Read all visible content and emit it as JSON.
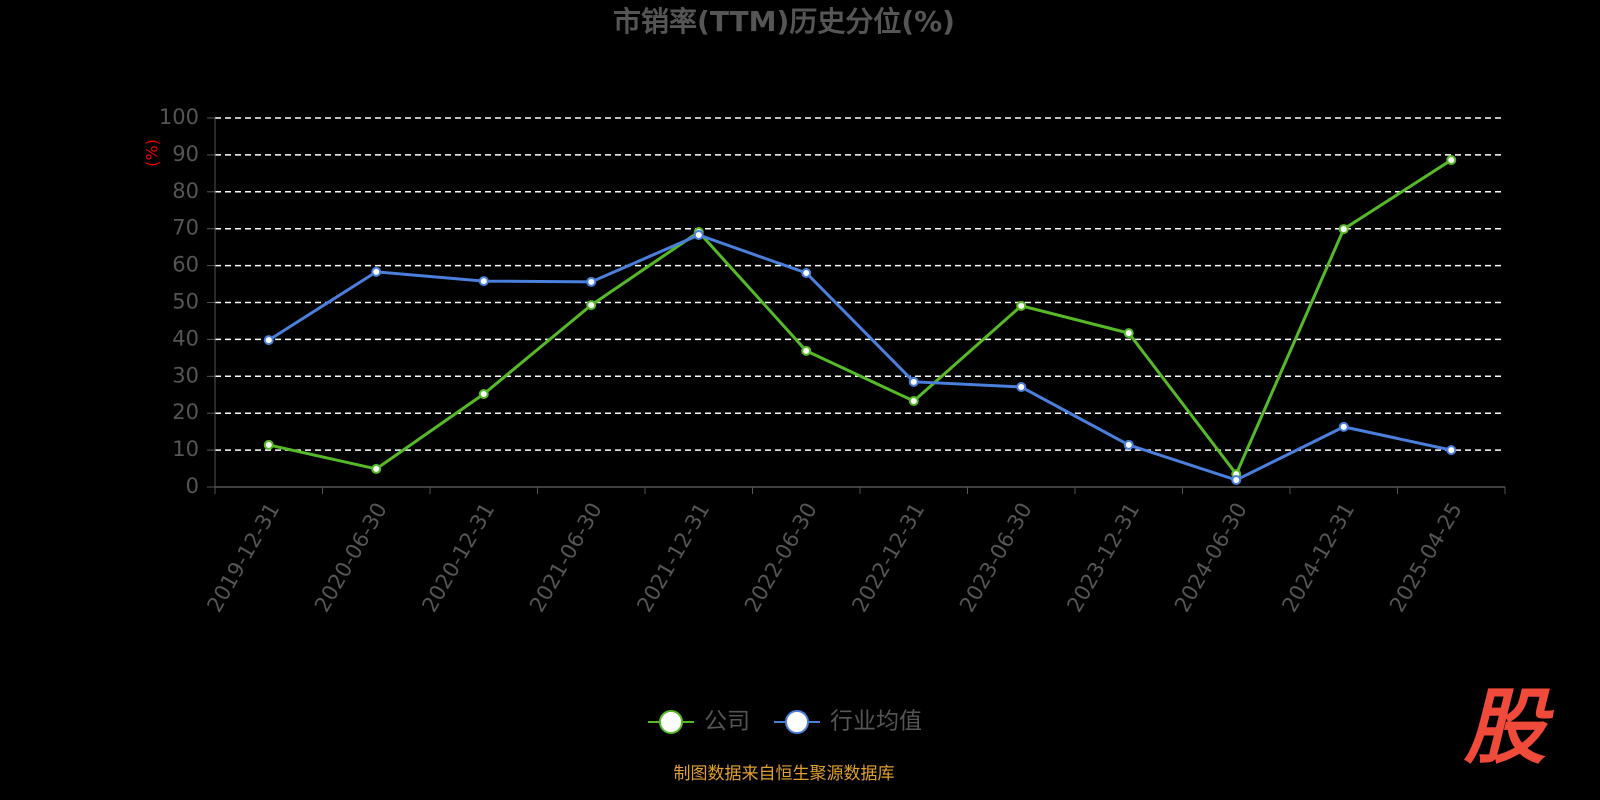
{
  "chart_data": {
    "type": "line",
    "title": "市销率(TTM)历史分位(%)",
    "y_label": "(%)",
    "categories": [
      "2019-12-31",
      "2020-06-30",
      "2020-12-31",
      "2021-06-30",
      "2021-12-31",
      "2022-06-30",
      "2022-12-31",
      "2023-06-30",
      "2023-12-31",
      "2024-06-30",
      "2024-12-31",
      "2025-04-25"
    ],
    "series": [
      {
        "name": "公司",
        "color": "#56b928",
        "values": [
          11.4,
          4.9,
          25.2,
          49.3,
          69.1,
          36.9,
          23.3,
          49.1,
          41.7,
          3.5,
          69.9,
          88.6
        ]
      },
      {
        "name": "行业均值",
        "color": "#4a7fdc",
        "values": [
          39.8,
          58.3,
          55.8,
          55.6,
          68.3,
          58.0,
          28.5,
          27.1,
          11.4,
          1.9,
          16.3,
          10.0
        ]
      }
    ],
    "ylim": [
      0,
      100
    ],
    "yticks": [
      0,
      10,
      20,
      30,
      40,
      50,
      60,
      70,
      80,
      90,
      100
    ],
    "grid": true,
    "legend": "bottom",
    "source": "制图数据来自恒生聚源数据库",
    "logo": "股"
  }
}
